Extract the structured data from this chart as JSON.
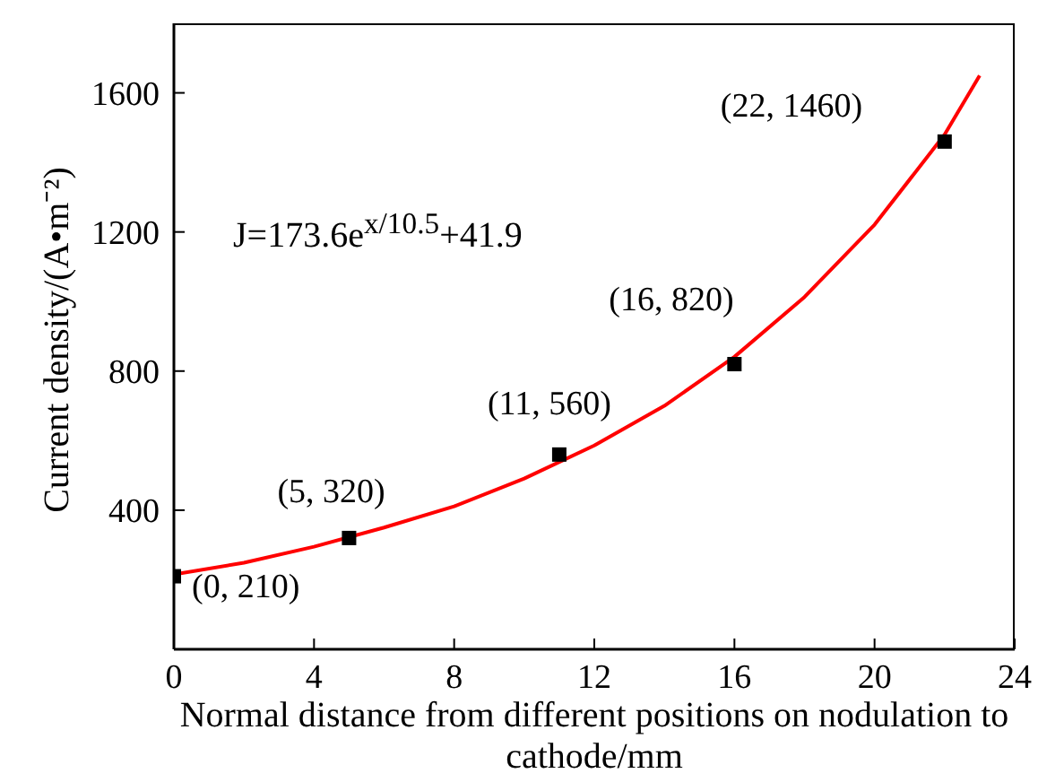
{
  "chart_data": {
    "type": "scatter",
    "xlabel": "Normal distance from different positions on nodulation to cathode/mm",
    "ylabel": "Current density/(A•m⁻²)",
    "xlim": [
      0,
      24
    ],
    "xticks": [
      0,
      4,
      8,
      12,
      16,
      20,
      24
    ],
    "ylim": [
      0,
      1800
    ],
    "yticks": [
      400,
      800,
      1200,
      1600
    ],
    "grid": false,
    "legend": false,
    "marker": "square",
    "series": [
      {
        "color": "#000000",
        "x": [
          0,
          5,
          11,
          16,
          22
        ],
        "values": [
          210,
          320,
          560,
          820,
          1460
        ]
      },
      {
        "type": "line",
        "color": "#ff0000",
        "marker": "none",
        "x": [
          0,
          2,
          4,
          6,
          8,
          10,
          12,
          14,
          16,
          18,
          20,
          22,
          23
        ],
        "values": [
          215,
          249,
          295,
          350,
          411,
          491,
          586,
          700,
          841,
          1013,
          1221,
          1480,
          1650
        ]
      }
    ],
    "annotations": [
      {
        "text": "(0, 210)",
        "x": 0,
        "y": 210
      },
      {
        "text": "(5, 320)",
        "x": 5,
        "y": 320
      },
      {
        "text": "(11, 560)",
        "x": 11,
        "y": 560
      },
      {
        "text": "(16, 820)",
        "x": 16,
        "y": 820
      },
      {
        "text": "(22, 1460)",
        "x": 22,
        "y": 1460
      },
      "J=173.6e$^{x/10.5}$+41.9"
    ]
  }
}
